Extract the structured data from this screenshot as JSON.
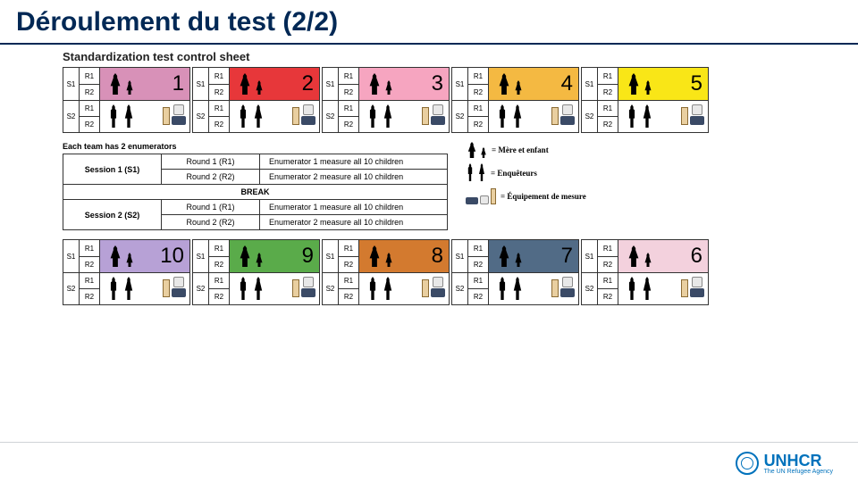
{
  "title": "Déroulement du test (2/2)",
  "sheet_title": "Standardization test control sheet",
  "schedule_title": "Each team has 2 enumerators",
  "session_labels": {
    "S1": "S1",
    "S2": "S2"
  },
  "round_labels": {
    "R1": "R1",
    "R2": "R2"
  },
  "stations_top": [
    {
      "n": "1",
      "bg": "#d891b8"
    },
    {
      "n": "2",
      "bg": "#e7373a"
    },
    {
      "n": "3",
      "bg": "#f6a5c0"
    },
    {
      "n": "4",
      "bg": "#f4b942"
    },
    {
      "n": "5",
      "bg": "#f9e617"
    }
  ],
  "stations_bottom": [
    {
      "n": "10",
      "bg": "#b7a1d6"
    },
    {
      "n": "9",
      "bg": "#5aab4a"
    },
    {
      "n": "8",
      "bg": "#d37a2f"
    },
    {
      "n": "7",
      "bg": "#516b86"
    },
    {
      "n": "6",
      "bg": "#f3d1dd"
    }
  ],
  "schedule": {
    "s1": {
      "label": "Session 1 (S1)",
      "r1": {
        "rnd": "Round 1 (R1)",
        "desc": "Enumerator 1 measure all 10 children"
      },
      "r2": {
        "rnd": "Round 2 (R2)",
        "desc": "Enumerator 2 measure all 10 children"
      }
    },
    "break_label": "BREAK",
    "s2": {
      "label": "Session 2 (S2)",
      "r1": {
        "rnd": "Round 1 (R1)",
        "desc": "Enumerator 1 measure all 10 children"
      },
      "r2": {
        "rnd": "Round 2 (R2)",
        "desc": "Enumerator 2 measure all 10 children"
      }
    }
  },
  "legend": {
    "mother_child": "= Mère et enfant",
    "enumerators": "= Enquêteurs",
    "equipment": "= Équipement de mesure"
  },
  "logo": {
    "text": "UNHCR",
    "sub": "The UN Refugee Agency"
  },
  "colors": {
    "title": "#002855",
    "accent": "#0072bc"
  }
}
